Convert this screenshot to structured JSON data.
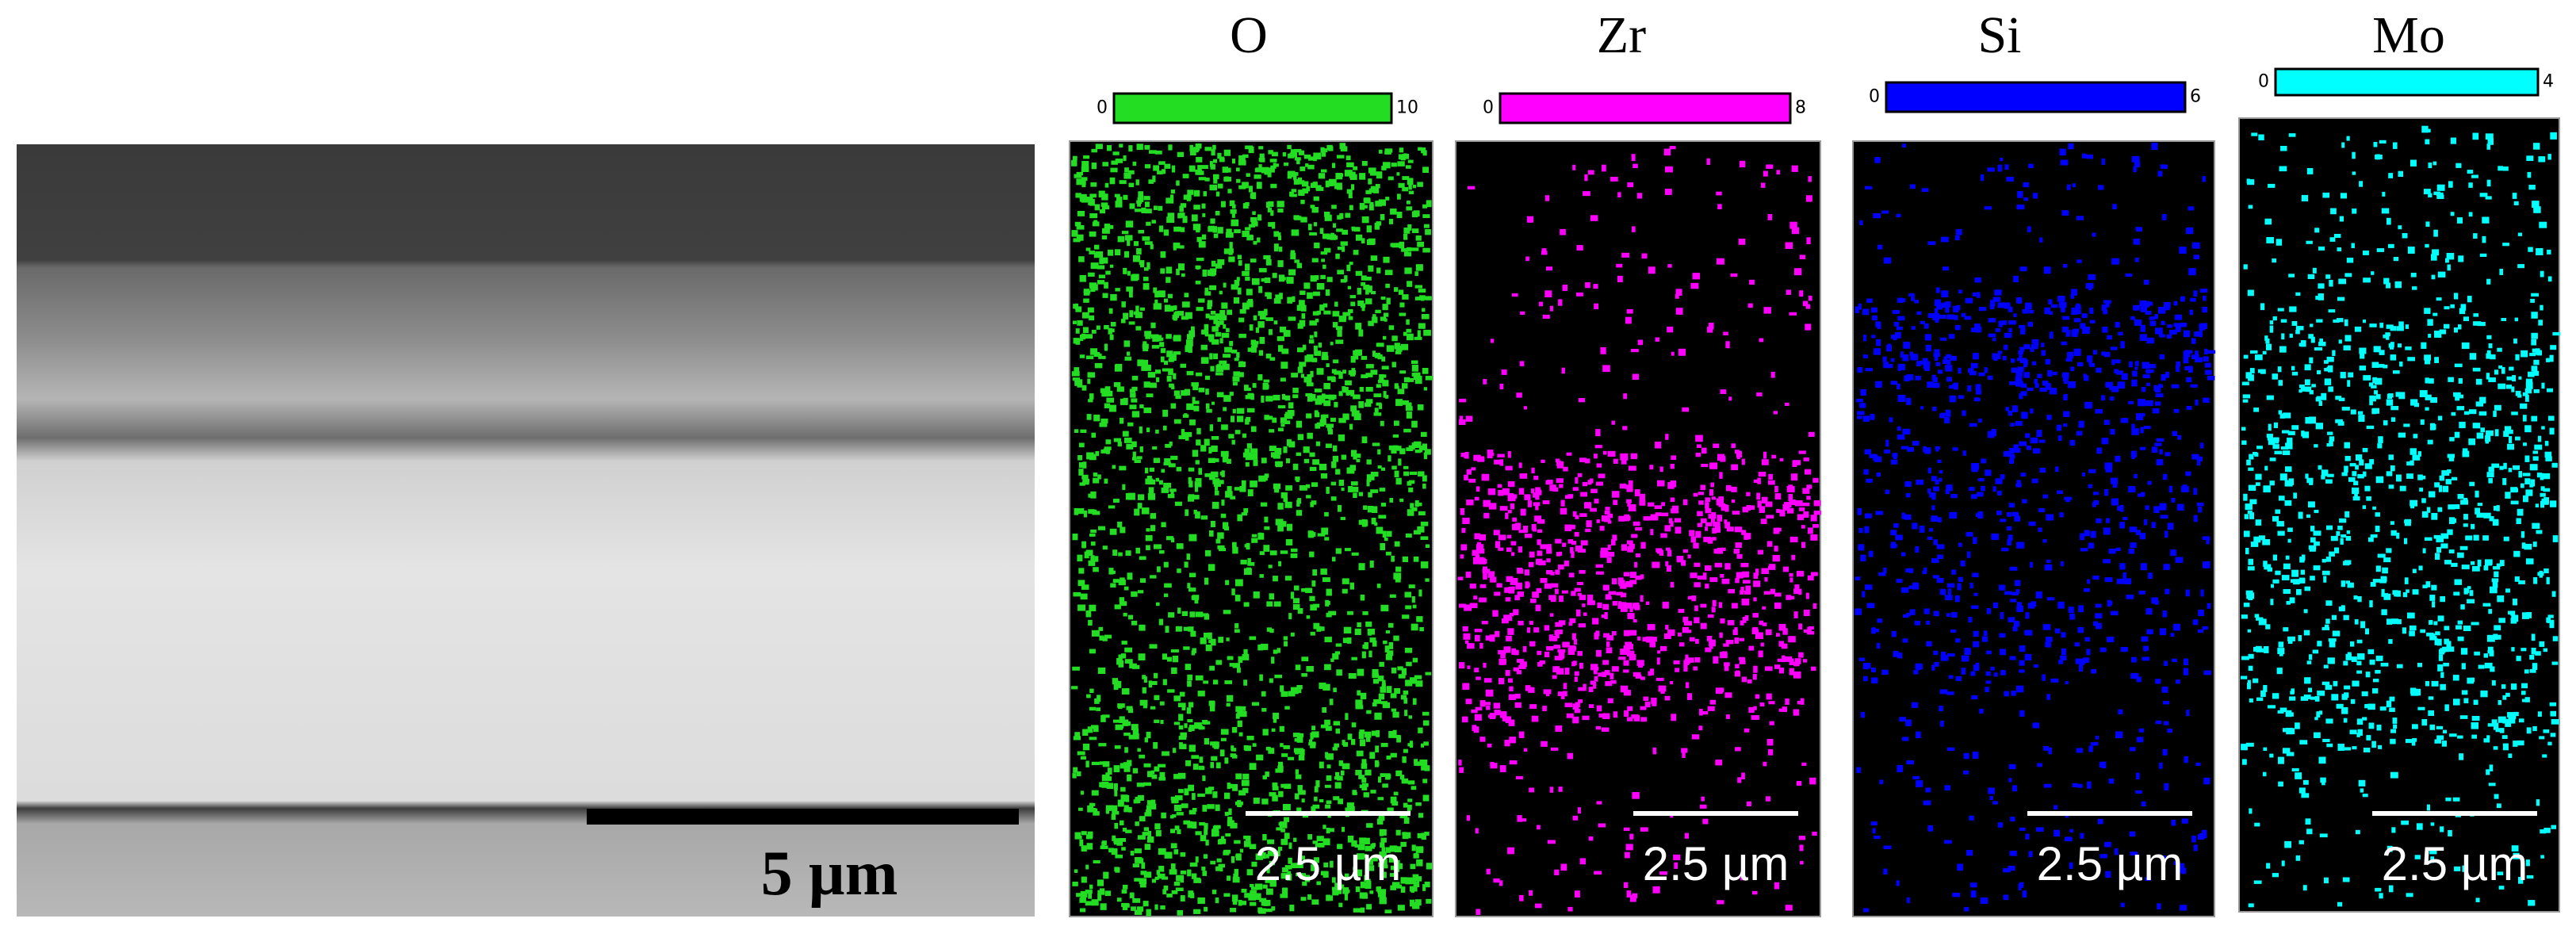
{
  "sem": {
    "scale_label": "5 µm"
  },
  "maps": [
    {
      "element": "O",
      "scale_min": "0",
      "scale_max": "10",
      "scale_label": "2.5 µm"
    },
    {
      "element": "Zr",
      "scale_min": "0",
      "scale_max": "8",
      "scale_label": "2.5 µm"
    },
    {
      "element": "Si",
      "scale_min": "0",
      "scale_max": "6",
      "scale_label": "2.5 µm"
    },
    {
      "element": "Mo",
      "scale_min": "0",
      "scale_max": "4",
      "scale_label": "2.5 µm"
    }
  ]
}
